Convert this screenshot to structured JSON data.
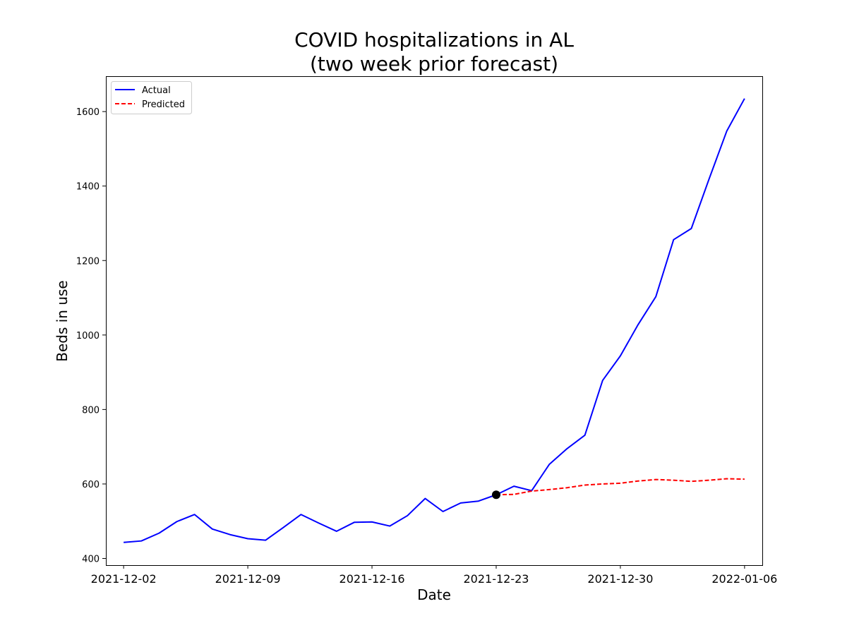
{
  "chart_data": {
    "type": "line",
    "title": [
      "COVID hospitalizations in AL",
      "(two week prior forecast)"
    ],
    "xlabel": "Date",
    "ylabel": "Beds in use",
    "x_ticks": [
      "2021-12-02",
      "2021-12-09",
      "2021-12-16",
      "2021-12-23",
      "2021-12-30",
      "2022-01-06"
    ],
    "y_ticks": [
      400,
      600,
      800,
      1000,
      1200,
      1400,
      1600
    ],
    "xlim": [
      "2021-12-01",
      "2022-01-07"
    ],
    "ylim": [
      382,
      1695
    ],
    "legend": {
      "placement": "top-left",
      "entries": [
        "Actual",
        "Predicted"
      ]
    },
    "colors": {
      "actual": "#0000ff",
      "predicted": "#ff0000",
      "marker": "#000000"
    },
    "series": [
      {
        "name": "Actual",
        "style": "solid",
        "points": [
          [
            "2021-12-02",
            443
          ],
          [
            "2021-12-03",
            447
          ],
          [
            "2021-12-04",
            468
          ],
          [
            "2021-12-05",
            499
          ],
          [
            "2021-12-06",
            518
          ],
          [
            "2021-12-07",
            479
          ],
          [
            "2021-12-08",
            464
          ],
          [
            "2021-12-09",
            453
          ],
          [
            "2021-12-10",
            449
          ],
          [
            "2021-12-11",
            483
          ],
          [
            "2021-12-12",
            518
          ],
          [
            "2021-12-13",
            495
          ],
          [
            "2021-12-14",
            473
          ],
          [
            "2021-12-15",
            497
          ],
          [
            "2021-12-16",
            498
          ],
          [
            "2021-12-17",
            487
          ],
          [
            "2021-12-18",
            515
          ],
          [
            "2021-12-19",
            561
          ],
          [
            "2021-12-20",
            526
          ],
          [
            "2021-12-21",
            549
          ],
          [
            "2021-12-22",
            554
          ],
          [
            "2021-12-23",
            571
          ],
          [
            "2021-12-24",
            594
          ],
          [
            "2021-12-25",
            582
          ],
          [
            "2021-12-26",
            653
          ],
          [
            "2021-12-27",
            695
          ],
          [
            "2021-12-28",
            731
          ],
          [
            "2021-12-29",
            878
          ],
          [
            "2021-12-30",
            944
          ],
          [
            "2021-12-31",
            1028
          ],
          [
            "2022-01-01",
            1103
          ],
          [
            "2022-01-02",
            1256
          ],
          [
            "2022-01-03",
            1286
          ],
          [
            "2022-01-04",
            1419
          ],
          [
            "2022-01-05",
            1548
          ],
          [
            "2022-01-06",
            1635
          ]
        ]
      },
      {
        "name": "Predicted",
        "style": "dashed",
        "points": [
          [
            "2021-12-23",
            571
          ],
          [
            "2021-12-24",
            572
          ],
          [
            "2021-12-25",
            581
          ],
          [
            "2021-12-26",
            585
          ],
          [
            "2021-12-27",
            590
          ],
          [
            "2021-12-28",
            597
          ],
          [
            "2021-12-29",
            600
          ],
          [
            "2021-12-30",
            602
          ],
          [
            "2021-12-31",
            608
          ],
          [
            "2022-01-01",
            612
          ],
          [
            "2022-01-02",
            610
          ],
          [
            "2022-01-03",
            607
          ],
          [
            "2022-01-04",
            610
          ],
          [
            "2022-01-05",
            614
          ],
          [
            "2022-01-06",
            613
          ]
        ]
      }
    ],
    "marker": {
      "date": "2021-12-23",
      "value": 571
    }
  }
}
